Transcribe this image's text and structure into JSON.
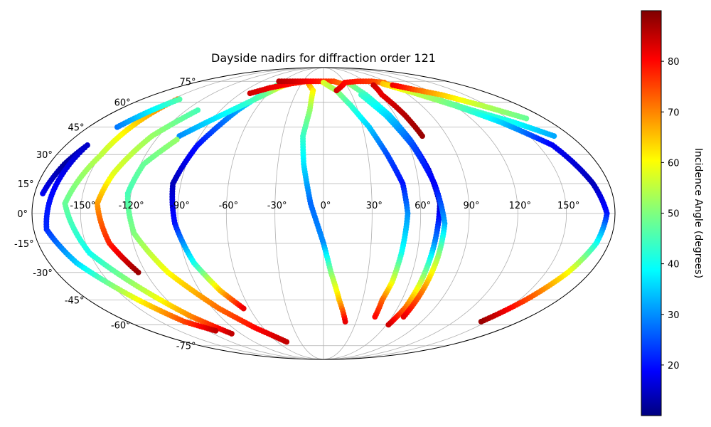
{
  "chart_data": {
    "type": "scatter",
    "projection": "mollweide",
    "title": "Dayside nadirs for diffraction order 121",
    "lon_tick_labels": [
      "-150°",
      "-120°",
      "-90°",
      "-60°",
      "-30°",
      "0°",
      "30°",
      "60°",
      "90°",
      "120°",
      "150°"
    ],
    "lat_tick_labels": [
      "-75°",
      "-60°",
      "-45°",
      "-30°",
      "-15°",
      "0°",
      "15°",
      "30°",
      "45°",
      "60°",
      "75°"
    ],
    "lon_ticks": [
      -150,
      -120,
      -90,
      -60,
      -30,
      0,
      30,
      60,
      90,
      120,
      150
    ],
    "lat_ticks": [
      -75,
      -60,
      -45,
      -30,
      -15,
      0,
      15,
      30,
      45,
      60,
      75
    ],
    "grid": true,
    "colorbar": {
      "label": "Incidence Angle (degrees)",
      "colormap": "jet",
      "range": [
        10,
        90
      ],
      "tick_values": [
        20,
        30,
        40,
        50,
        60,
        70,
        80
      ],
      "tick_labels": [
        "20",
        "30",
        "40",
        "50",
        "60",
        "70",
        "80"
      ]
    },
    "series": [
      {
        "points": [
          [
            -145,
            62,
            72
          ],
          [
            -150,
            30,
            55
          ],
          [
            -160,
            5,
            48
          ],
          [
            -150,
            -20,
            40
          ],
          [
            -130,
            -40,
            55
          ],
          [
            -115,
            -55,
            70
          ],
          [
            -100,
            -66,
            85
          ]
        ]
      },
      {
        "points": [
          [
            -175,
            10,
            18
          ],
          [
            -170,
            25,
            12
          ],
          [
            -165,
            35,
            15
          ],
          [
            -172,
            -8,
            22
          ],
          [
            -162,
            -25,
            35
          ],
          [
            -142,
            -45,
            60
          ],
          [
            -128,
            -58,
            75
          ],
          [
            -112,
            -64,
            85
          ]
        ]
      },
      {
        "points": [
          [
            -158,
            45,
            28
          ],
          [
            -150,
            55,
            38
          ],
          [
            -143,
            62,
            46
          ]
        ]
      },
      {
        "points": [
          [
            -110,
            55,
            45
          ],
          [
            -125,
            40,
            52
          ],
          [
            -135,
            20,
            58
          ],
          [
            -140,
            5,
            68
          ],
          [
            -135,
            -15,
            78
          ],
          [
            -125,
            -30,
            88
          ]
        ]
      },
      {
        "points": [
          [
            -60,
            72,
            48
          ],
          [
            -65,
            66,
            42
          ],
          [
            -75,
            55,
            32
          ],
          [
            -88,
            35,
            20
          ],
          [
            -95,
            15,
            14
          ],
          [
            -92,
            -5,
            20
          ],
          [
            -85,
            -25,
            40
          ],
          [
            -75,
            -40,
            65
          ],
          [
            -65,
            -50,
            82
          ]
        ]
      },
      {
        "points": [
          [
            -45,
            74,
            68
          ],
          [
            -55,
            70,
            58
          ],
          [
            -63,
            65,
            48
          ],
          [
            -75,
            58,
            42
          ],
          [
            -92,
            48,
            36
          ],
          [
            -105,
            40,
            30
          ]
        ]
      },
      {
        "points": [
          [
            -105,
            38,
            52
          ],
          [
            -118,
            25,
            48
          ],
          [
            -122,
            10,
            45
          ],
          [
            -118,
            -10,
            50
          ],
          [
            -105,
            -30,
            60
          ],
          [
            -85,
            -50,
            72
          ],
          [
            -68,
            -62,
            80
          ],
          [
            -48,
            -72,
            85
          ]
        ]
      },
      {
        "points": [
          [
            -20,
            73,
            70
          ],
          [
            -12,
            68,
            62
          ],
          [
            -12,
            55,
            52
          ],
          [
            -15,
            40,
            44
          ],
          [
            -13,
            25,
            37
          ],
          [
            -8,
            5,
            27
          ],
          [
            0,
            -15,
            30
          ],
          [
            5,
            -30,
            50
          ],
          [
            12,
            -45,
            65
          ],
          [
            20,
            -58,
            82
          ]
        ]
      },
      {
        "points": [
          [
            -80,
            66,
            84
          ],
          [
            -65,
            70,
            82
          ],
          [
            -45,
            73,
            80
          ],
          [
            -25,
            75,
            78
          ]
        ]
      },
      {
        "points": [
          [
            -65,
            75,
            86
          ],
          [
            -45,
            75,
            84
          ],
          [
            -30,
            75,
            82
          ],
          [
            -15,
            75,
            80
          ],
          [
            0,
            75,
            78
          ],
          [
            15,
            75,
            75
          ],
          [
            25,
            73,
            72
          ]
        ]
      },
      {
        "points": [
          [
            0,
            74,
            58
          ],
          [
            15,
            68,
            52
          ],
          [
            25,
            58,
            44
          ],
          [
            35,
            45,
            35
          ],
          [
            43,
            30,
            25
          ],
          [
            50,
            15,
            20
          ],
          [
            52,
            0,
            30
          ],
          [
            50,
            -20,
            40
          ],
          [
            48,
            -35,
            58
          ],
          [
            45,
            -45,
            72
          ],
          [
            45,
            -55,
            80
          ]
        ]
      },
      {
        "points": [
          [
            35,
            73,
            52
          ],
          [
            45,
            65,
            44
          ],
          [
            55,
            52,
            36
          ],
          [
            62,
            38,
            26
          ],
          [
            68,
            22,
            16
          ],
          [
            72,
            5,
            14
          ],
          [
            70,
            -15,
            30
          ],
          [
            68,
            -35,
            55
          ],
          [
            66,
            -50,
            72
          ],
          [
            62,
            -60,
            84
          ]
        ]
      },
      {
        "points": [
          [
            40,
            65,
            44
          ],
          [
            52,
            52,
            36
          ],
          [
            62,
            35,
            25
          ],
          [
            70,
            15,
            18
          ],
          [
            75,
            -5,
            32
          ],
          [
            74,
            -22,
            52
          ],
          [
            72,
            -40,
            70
          ],
          [
            70,
            -55,
            82
          ]
        ]
      },
      {
        "points": [
          [
            15,
            68,
            84
          ],
          [
            30,
            74,
            80
          ],
          [
            50,
            75,
            78
          ],
          [
            70,
            75,
            76
          ],
          [
            85,
            74,
            72
          ]
        ]
      },
      {
        "points": [
          [
            65,
            72,
            84
          ],
          [
            62,
            65,
            82
          ],
          [
            68,
            52,
            86
          ],
          [
            72,
            40,
            88
          ]
        ]
      },
      {
        "points": [
          [
            80,
            74,
            72
          ],
          [
            95,
            70,
            62
          ],
          [
            110,
            63,
            52
          ],
          [
            130,
            55,
            45
          ],
          [
            150,
            48,
            40
          ],
          [
            168,
            40,
            32
          ]
        ]
      },
      {
        "points": [
          [
            80,
            73,
            65
          ],
          [
            100,
            66,
            56
          ],
          [
            120,
            58,
            48
          ],
          [
            140,
            48,
            36
          ],
          [
            160,
            35,
            18
          ],
          [
            170,
            15,
            14
          ],
          [
            175,
            0,
            20
          ],
          [
            172,
            -15,
            40
          ],
          [
            165,
            -30,
            60
          ],
          [
            155,
            -45,
            75
          ],
          [
            145,
            -58,
            88
          ]
        ]
      },
      {
        "points": [
          [
            90,
            72,
            82
          ],
          [
            100,
            70,
            78
          ],
          [
            110,
            68,
            72
          ],
          [
            125,
            65,
            65
          ],
          [
            145,
            58,
            55
          ],
          [
            165,
            50,
            48
          ]
        ]
      }
    ]
  }
}
